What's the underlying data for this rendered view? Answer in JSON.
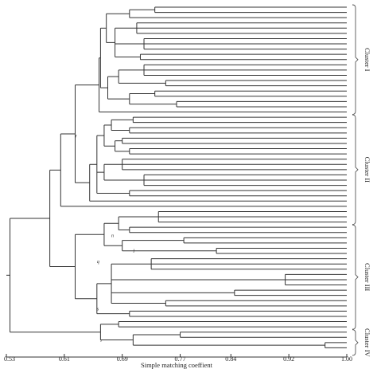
{
  "axis": {
    "label": "Simple matching coeffient",
    "range": [
      0.53,
      1.0
    ],
    "ticks": [
      {
        "value": 0.53,
        "label": "0.53"
      },
      {
        "value": 0.61,
        "label": "0.61"
      },
      {
        "value": 0.69,
        "label": "0.69"
      },
      {
        "value": 0.77,
        "label": "0.77"
      },
      {
        "value": 0.84,
        "label": "0.84"
      },
      {
        "value": 0.92,
        "label": "0.92"
      },
      {
        "value": 1.0,
        "label": "1.00"
      }
    ]
  },
  "clusters": [
    {
      "label": "Cluster I",
      "from_leaf": 0,
      "to_leaf": 20
    },
    {
      "label": "Cluster II",
      "from_leaf": 21,
      "to_leaf": 41
    },
    {
      "label": "Cluster III",
      "from_leaf": 42,
      "to_leaf": 61
    },
    {
      "label": "Cluster IV",
      "from_leaf": 62,
      "to_leaf": 66
    }
  ],
  "node_labels": [
    {
      "text": "r",
      "value": 0.625,
      "leaf": 25
    },
    {
      "text": "n",
      "value": 0.675,
      "leaf": 44
    },
    {
      "text": "l",
      "value": 0.705,
      "leaf": 47
    },
    {
      "text": "q",
      "value": 0.655,
      "leaf": 49
    },
    {
      "text": "s",
      "value": 0.655,
      "leaf": 58
    },
    {
      "text": "r",
      "value": 0.66,
      "leaf": 64
    }
  ],
  "leaf_count": 67,
  "tree": {
    "h": 0.535,
    "c": [
      {
        "h": 0.59,
        "c": [
          {
            "h": 0.605,
            "c": [
              {
                "h": 0.625,
                "c": [
                  {
                    "h": 0.658,
                    "c": [
                      {
                        "h": 0.66,
                        "c": [
                          {
                            "h": 0.668,
                            "c": [
                              {
                                "h": 0.7,
                                "c": [
                                  {
                                    "h": 0.735,
                                    "c": [
                                      {
                                        "h": 1
                                      },
                                      {
                                        "h": 1
                                      }
                                    ]
                                  },
                                  {
                                    "h": 1
                                  }
                                ]
                              },
                              {
                                "h": 0.68,
                                "c": [
                                  {
                                    "h": 0.71,
                                    "c": [
                                      {
                                        "h": 1
                                      },
                                      {
                                        "h": 1
                                      },
                                      {
                                        "h": 1
                                      }
                                    ]
                                  },
                                  {
                                    "h": 0.72,
                                    "c": [
                                      {
                                        "h": 1
                                      },
                                      {
                                        "h": 1
                                      },
                                      {
                                        "h": 1
                                      }
                                    ]
                                  },
                                  {
                                    "h": 0.715,
                                    "c": [
                                      {
                                        "h": 1
                                      },
                                      {
                                        "h": 1
                                      }
                                    ]
                                  }
                                ]
                              }
                            ]
                          },
                          {
                            "h": 0.67,
                            "c": [
                              {
                                "h": 0.685,
                                "c": [
                                  {
                                    "h": 0.72,
                                    "c": [
                                      {
                                        "h": 1
                                      },
                                      {
                                        "h": 1
                                      },
                                      {
                                        "h": 1
                                      }
                                    ]
                                  },
                                  {
                                    "h": 0.75,
                                    "c": [
                                      {
                                        "h": 1
                                      },
                                      {
                                        "h": 1
                                      }
                                    ]
                                  }
                                ]
                              },
                              {
                                "h": 0.7,
                                "c": [
                                  {
                                    "h": 0.735,
                                    "c": [
                                      {
                                        "h": 1
                                      },
                                      {
                                        "h": 1
                                      }
                                    ]
                                  },
                                  {
                                    "h": 0.765,
                                    "c": [
                                      {
                                        "h": 1
                                      },
                                      {
                                        "h": 1
                                      }
                                    ]
                                  }
                                ]
                              }
                            ]
                          }
                        ]
                      },
                      {
                        "h": 1
                      }
                    ]
                  },
                  {
                    "h": 0.645,
                    "c": [
                      {
                        "h": 0.655,
                        "c": [
                          {
                            "h": 0.665,
                            "c": [
                              {
                                "h": 0.675,
                                "c": [
                                  {
                                    "h": 0.705,
                                    "c": [
                                      {
                                        "h": 1
                                      },
                                      {
                                        "h": 1
                                      }
                                    ]
                                  },
                                  {
                                    "h": 0.7,
                                    "c": [
                                      {
                                        "h": 1
                                      },
                                      {
                                        "h": 1
                                      }
                                    ]
                                  }
                                ]
                              },
                              {
                                "h": 0.68,
                                "c": [
                                  {
                                    "h": 0.69,
                                    "c": [
                                      {
                                        "h": 1
                                      },
                                      {
                                        "h": 1
                                      }
                                    ]
                                  },
                                  {
                                    "h": 0.7,
                                    "c": [
                                      {
                                        "h": 1
                                      },
                                      {
                                        "h": 1
                                      }
                                    ]
                                  }
                                ]
                              }
                            ]
                          },
                          {
                            "h": 0.665,
                            "c": [
                              {
                                "h": 0.69,
                                "c": [
                                  {
                                    "h": 1
                                  },
                                  {
                                    "h": 1
                                  },
                                  {
                                    "h": 1
                                  }
                                ]
                              },
                              {
                                "h": 0.72,
                                "c": [
                                  {
                                    "h": 1
                                  },
                                  {
                                    "h": 1
                                  },
                                  {
                                    "h": 1
                                  }
                                ]
                              }
                            ]
                          },
                          {
                            "h": 0.7,
                            "c": [
                              {
                                "h": 1
                              },
                              {
                                "h": 1
                              }
                            ]
                          }
                        ]
                      },
                      {
                        "h": 1
                      }
                    ]
                  }
                ]
              },
              {
                "h": 1
              }
            ]
          },
          {
            "h": 0.625,
            "c": [
              {
                "h": 0.665,
                "c": [
                  {
                    "h": 0.685,
                    "c": [
                      {
                        "h": 0.74,
                        "c": [
                          {
                            "h": 1
                          },
                          {
                            "h": 1
                          },
                          {
                            "h": 1
                          }
                        ]
                      },
                      {
                        "h": 0.7,
                        "c": [
                          {
                            "h": 1
                          },
                          {
                            "h": 1
                          }
                        ]
                      }
                    ]
                  },
                  {
                    "h": 0.69,
                    "c": [
                      {
                        "h": 0.775,
                        "c": [
                          {
                            "h": 1
                          },
                          {
                            "h": 1
                          }
                        ]
                      },
                      {
                        "h": 0.82,
                        "c": [
                          {
                            "h": 1
                          },
                          {
                            "h": 1
                          }
                        ]
                      }
                    ]
                  }
                ]
              },
              {
                "h": 0.655,
                "c": [
                  {
                    "h": 0.675,
                    "c": [
                      {
                        "h": 0.73,
                        "c": [
                          {
                            "h": 1
                          },
                          {
                            "h": 1
                          },
                          {
                            "h": 1
                          }
                        ]
                      },
                      {
                        "h": 0.915,
                        "c": [
                          {
                            "h": 1
                          },
                          {
                            "h": 1
                          },
                          {
                            "h": 1
                          }
                        ]
                      },
                      {
                        "h": 0.845,
                        "c": [
                          {
                            "h": 1
                          },
                          {
                            "h": 1
                          }
                        ]
                      },
                      {
                        "h": 0.75,
                        "c": [
                          {
                            "h": 1
                          },
                          {
                            "h": 1
                          }
                        ]
                      }
                    ]
                  },
                  {
                    "h": 0.7,
                    "c": [
                      {
                        "h": 1
                      },
                      {
                        "h": 1
                      }
                    ]
                  }
                ]
              }
            ]
          }
        ]
      },
      {
        "h": 0.66,
        "c": [
          {
            "h": 0.685,
            "c": [
              {
                "h": 1
              },
              {
                "h": 1
              }
            ]
          },
          {
            "h": 0.705,
            "c": [
              {
                "h": 0.77,
                "c": [
                  {
                    "h": 1
                  },
                  {
                    "h": 1
                  }
                ]
              },
              {
                "h": 0.97,
                "c": [
                  {
                    "h": 1
                  },
                  {
                    "h": 1
                  }
                ]
              }
            ]
          }
        ]
      }
    ]
  }
}
